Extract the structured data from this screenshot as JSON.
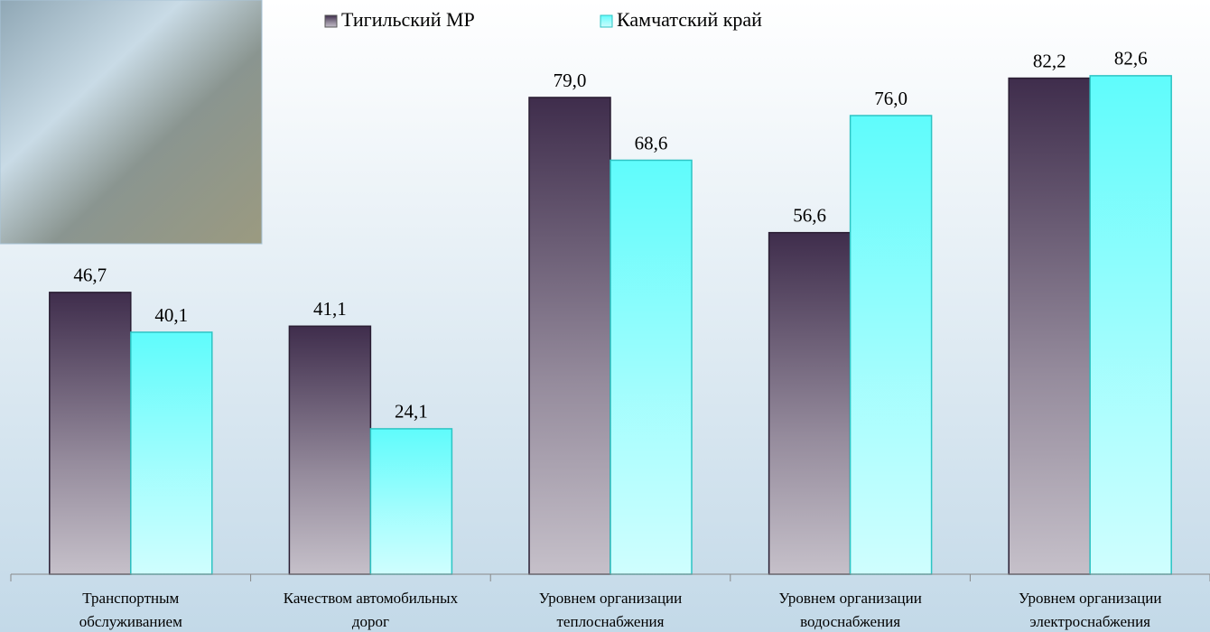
{
  "chart_data": {
    "type": "bar",
    "categories": [
      [
        "Транспортным",
        "обслуживанием"
      ],
      [
        "Качеством автомобильных",
        "дорог"
      ],
      [
        "Уровнем организации",
        "теплоснабжения"
      ],
      [
        "Уровнем организации",
        "водоснабжения"
      ],
      [
        "Уровнем организации",
        "электроснабжения"
      ]
    ],
    "series": [
      {
        "name": "Тигильский МР",
        "color": "#3f2d4c",
        "values": [
          46.7,
          41.1,
          79.0,
          56.6,
          82.2
        ],
        "value_labels": [
          "46,7",
          "41,1",
          "79,0",
          "56,6",
          "82,2"
        ]
      },
      {
        "name": "Камчатский край",
        "color": "#5ffcfc",
        "values": [
          40.1,
          24.1,
          68.6,
          76.0,
          82.6
        ],
        "value_labels": [
          "40,1",
          "24,1",
          "68,6",
          "76,0",
          "82,6"
        ]
      }
    ],
    "ylim": [
      0,
      95
    ],
    "legend": "top"
  }
}
